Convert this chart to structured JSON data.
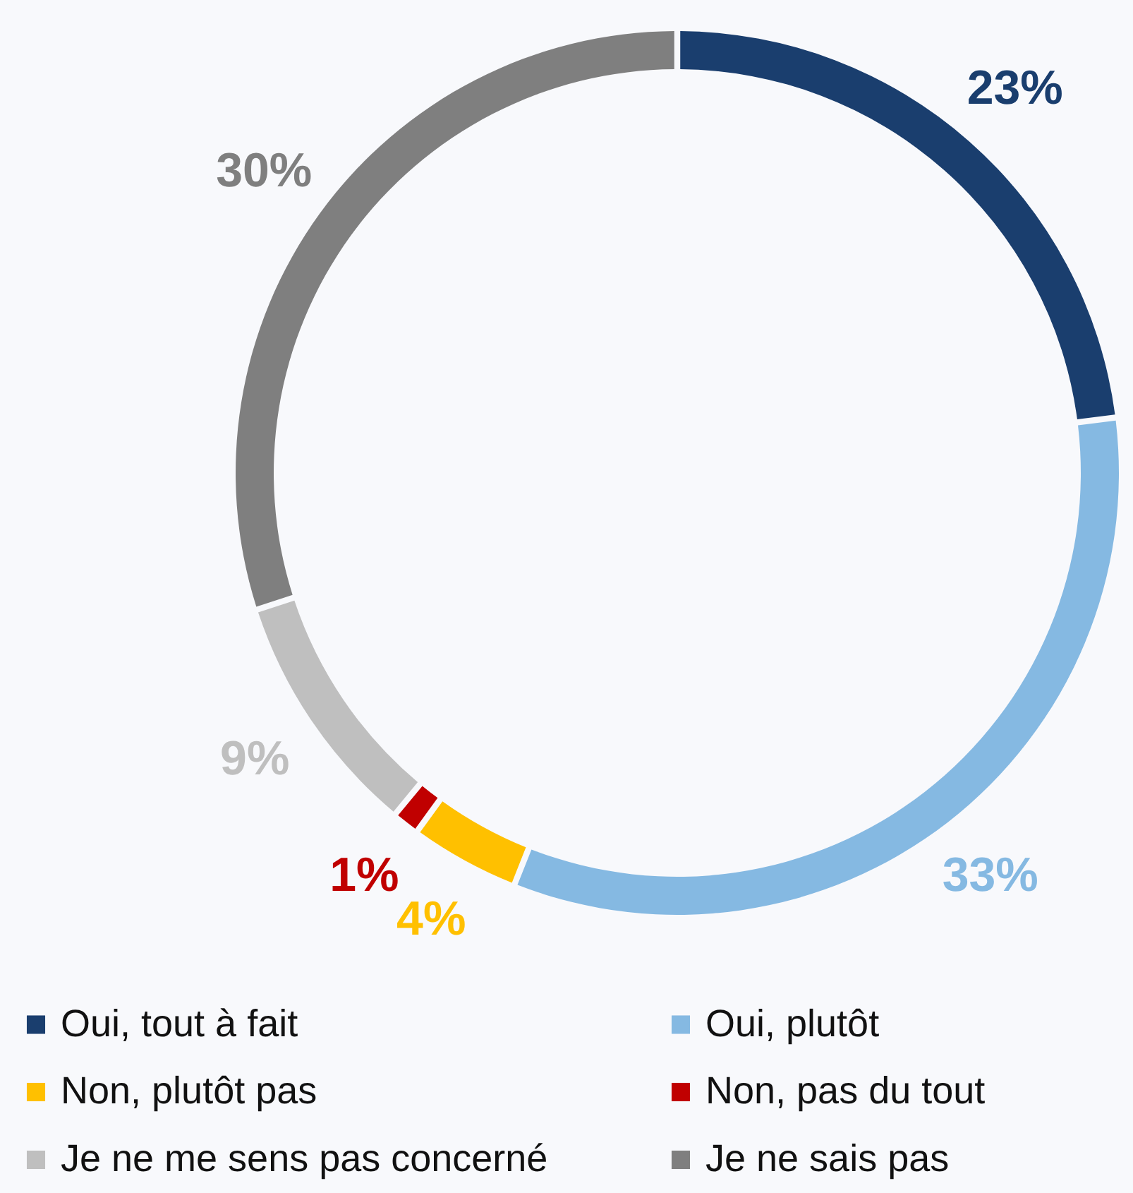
{
  "chart_data": {
    "type": "donut",
    "categories": [
      "Oui, tout à fait",
      "Oui, plutôt",
      "Non, plutôt pas",
      "Non, pas du tout",
      "Je ne me sens pas concerné",
      "Je ne sais pas"
    ],
    "values": [
      23,
      33,
      4,
      1,
      9,
      30
    ],
    "colors": [
      "#1a3e6e",
      "#85b9e2",
      "#ffc000",
      "#c00000",
      "#bfbfbf",
      "#7f7f7f"
    ],
    "value_labels": [
      "23%",
      "33%",
      "4%",
      "1%",
      "9%",
      "30%"
    ],
    "legend": "bottom"
  }
}
